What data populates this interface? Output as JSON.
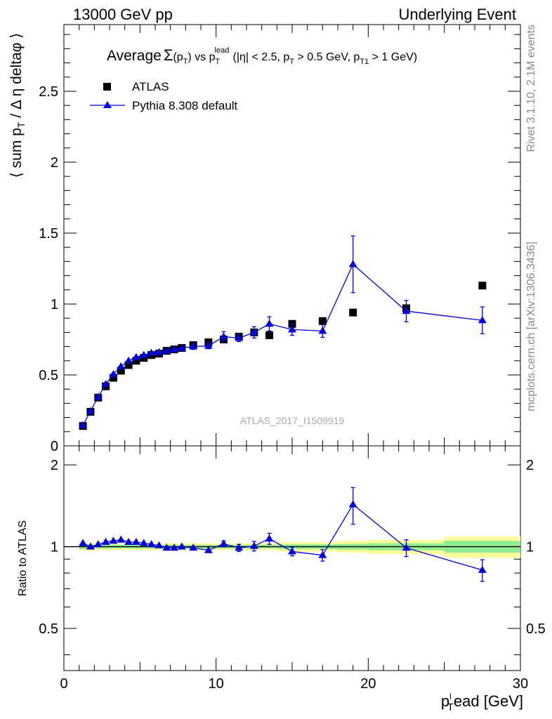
{
  "header": {
    "left": "13000 GeV pp",
    "right": "Underlying Event"
  },
  "side": {
    "top": "Rivet 3.1.10,  2.1M events",
    "bottom": "mcplots.cern.ch [arXiv:1306.3436]"
  },
  "chart_data": [
    {
      "type": "scatter",
      "title": "Average Σ(p_T) vs p_T^lead (|η| < 2.5, p_T > 0.5 GeV, p_T1 > 1 GeV)",
      "title_parts": {
        "a": "Average",
        "sigma": "Σ",
        "b": "(p",
        "b_sub": "T",
        "c": ") vs p",
        "c_sup": "lead",
        "c_sub": "T",
        "d": " (|η| < 2.5, p",
        "d_sub": "T",
        "e": " > 0.5 GeV, p",
        "e_sub": "T1",
        "f": " > 1 GeV)"
      },
      "ylabel": "⟨ sum p_T / Δ η deltaφ ⟩",
      "ylabel_parts": {
        "a": "⟨ sum p",
        "sub": "T",
        "b": " / Δ η deltaφ ⟩"
      },
      "watermark": "ATLAS_2017_I1509919",
      "xlim": [
        0,
        30
      ],
      "ylim": [
        0,
        2.97
      ],
      "x_ticks": [
        "0",
        "10",
        "20",
        "30"
      ],
      "y_ticks": [
        "0",
        "0.5",
        "1",
        "1.5",
        "2",
        "2.5"
      ],
      "legend_position": "top-left",
      "series": [
        {
          "name": "ATLAS",
          "marker": "square",
          "color": "#000000",
          "x": [
            1.25,
            1.75,
            2.25,
            2.75,
            3.25,
            3.75,
            4.25,
            4.75,
            5.25,
            5.75,
            6.25,
            6.75,
            7.25,
            7.75,
            8.5,
            9.5,
            10.5,
            11.5,
            12.5,
            13.5,
            15,
            17,
            19,
            22.5,
            27.5
          ],
          "y": [
            0.14,
            0.24,
            0.34,
            0.42,
            0.48,
            0.53,
            0.57,
            0.6,
            0.62,
            0.64,
            0.65,
            0.67,
            0.68,
            0.69,
            0.71,
            0.73,
            0.75,
            0.77,
            0.8,
            0.78,
            0.86,
            0.88,
            0.94,
            0.97,
            1.13
          ]
        },
        {
          "name": "Pythia 8.308 default",
          "marker": "triangle",
          "color": "#0000dd",
          "x": [
            1.25,
            1.75,
            2.25,
            2.75,
            3.25,
            3.75,
            4.25,
            4.75,
            5.25,
            5.75,
            6.25,
            6.75,
            7.25,
            7.75,
            8.5,
            9.5,
            10.5,
            11.5,
            12.5,
            13.5,
            15,
            17,
            19,
            22.5,
            27.5
          ],
          "y": [
            0.145,
            0.245,
            0.345,
            0.435,
            0.505,
            0.56,
            0.6,
            0.625,
            0.64,
            0.655,
            0.66,
            0.67,
            0.68,
            0.69,
            0.7,
            0.705,
            0.77,
            0.76,
            0.8,
            0.86,
            0.82,
            0.81,
            1.28,
            0.95,
            0.885
          ],
          "yerr": [
            0,
            0,
            0,
            0,
            0,
            0,
            0,
            0,
            0,
            0,
            0,
            0,
            0,
            0,
            0.02,
            0.02,
            0.035,
            0.025,
            0.04,
            0.05,
            0.04,
            0.045,
            0.2,
            0.075,
            0.095
          ]
        }
      ]
    },
    {
      "type": "scatter",
      "ylabel": "Ratio to ATLAS",
      "xlabel": "p_T^lead [GeV]",
      "xlabel_parts": {
        "a": "p",
        "sub": "T",
        "sup": "l",
        "b": "ead [GeV]"
      },
      "xlim": [
        0,
        30
      ],
      "ylim": [
        0.35,
        2.35
      ],
      "x_ticks": [
        "0",
        "10",
        "20",
        "30"
      ],
      "y_ticks": [
        "0.5",
        "1",
        "2"
      ],
      "reference_line": 1,
      "bands": {
        "inner_color": "#90ee90",
        "outer_color": "#ffff99",
        "edges": [
          1,
          2,
          4,
          6,
          8,
          10,
          12,
          14,
          16,
          18,
          20,
          25,
          30
        ],
        "inner_halfwidth": [
          0.02,
          0.015,
          0.015,
          0.015,
          0.015,
          0.015,
          0.015,
          0.02,
          0.02,
          0.025,
          0.03,
          0.05
        ],
        "outer_halfwidth": [
          0.035,
          0.03,
          0.03,
          0.03,
          0.03,
          0.03,
          0.03,
          0.04,
          0.04,
          0.05,
          0.06,
          0.09
        ]
      },
      "series": [
        {
          "name": "Pythia 8.308 default",
          "marker": "triangle",
          "color": "#0000dd",
          "x": [
            1.25,
            1.75,
            2.25,
            2.75,
            3.25,
            3.75,
            4.25,
            4.75,
            5.25,
            5.75,
            6.25,
            6.75,
            7.25,
            7.75,
            8.5,
            9.5,
            10.5,
            11.5,
            12.5,
            13.5,
            15,
            17,
            19,
            22.5,
            27.5
          ],
          "y": [
            1.03,
            1.0,
            1.02,
            1.04,
            1.05,
            1.06,
            1.04,
            1.04,
            1.03,
            1.02,
            1.01,
            0.99,
            0.99,
            1.0,
            0.99,
            0.97,
            1.025,
            0.99,
            1.005,
            1.07,
            0.96,
            0.93,
            1.43,
            0.99,
            0.82
          ],
          "yerr": [
            0,
            0,
            0,
            0,
            0,
            0,
            0,
            0,
            0,
            0,
            0,
            0,
            0,
            0,
            0,
            0,
            0.025,
            0.03,
            0.04,
            0.05,
            0.035,
            0.045,
            0.22,
            0.07,
            0.075
          ]
        }
      ]
    }
  ]
}
